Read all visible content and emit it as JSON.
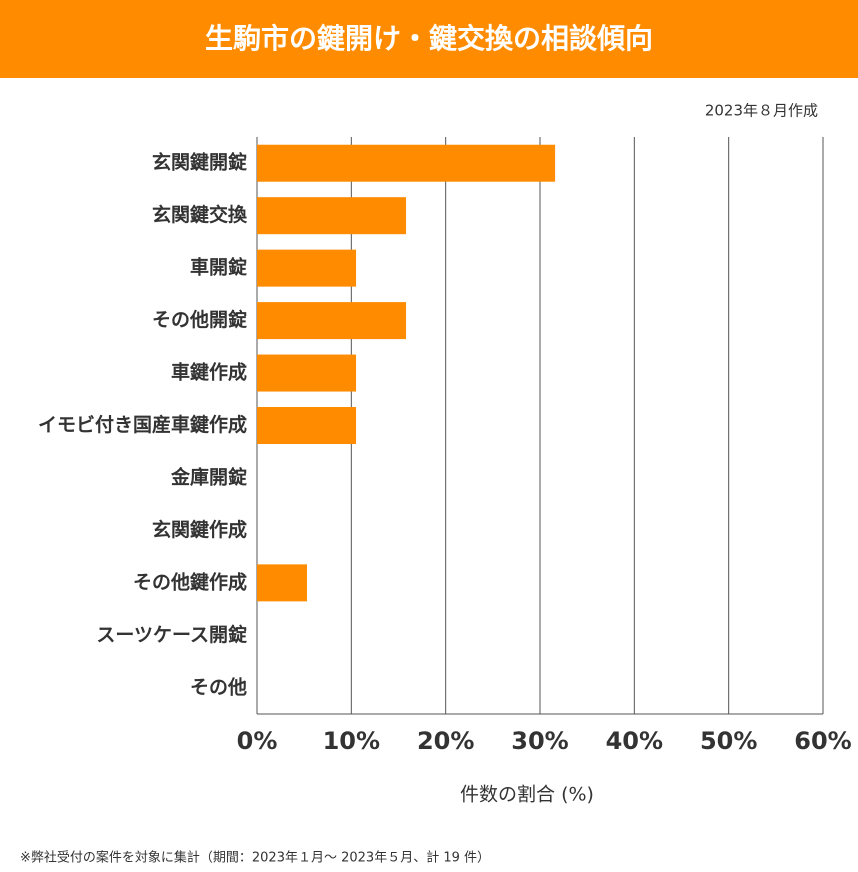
{
  "chart_data": {
    "type": "bar",
    "orientation": "horizontal",
    "title": "生駒市の鍵開け・鍵交換の相談傾向",
    "subtitle": "2023年８月作成",
    "x_label": "件数の割合 (%)",
    "note": "※弊社受付の案件を対象に集計（期間：2023年１月～ 2023年５月、計 19 件）",
    "categories": [
      "玄関鍵開錠",
      "玄関鍵交換",
      "車開錠",
      "その他開錠",
      "車鍵作成",
      "イモビ付き国産車鍵作成",
      "金庫開錠",
      "玄関鍵作成",
      "その他鍵作成",
      "スーツケース開錠",
      "その他"
    ],
    "values": [
      31.6,
      15.8,
      10.5,
      15.8,
      10.5,
      10.5,
      0,
      0,
      5.3,
      0,
      0
    ],
    "color": "#ff8c00",
    "xlim": [
      0,
      60
    ],
    "xticks": [
      {
        "value": 0,
        "label": "0%"
      },
      {
        "value": 10,
        "label": "10%"
      },
      {
        "value": 20,
        "label": "20%"
      },
      {
        "value": 30,
        "label": "30%"
      },
      {
        "value": 40,
        "label": "40%"
      },
      {
        "value": 50,
        "label": "50%"
      },
      {
        "value": 60,
        "label": "60%"
      }
    ],
    "grid": true
  }
}
